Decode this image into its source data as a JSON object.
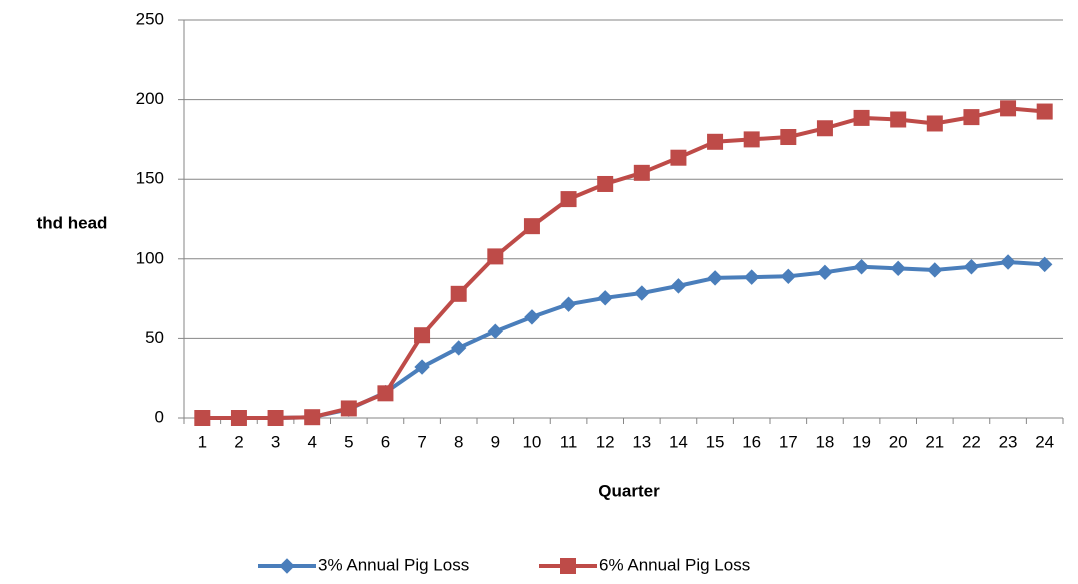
{
  "chart_data": {
    "type": "line",
    "title": "",
    "xlabel": "Quarter",
    "ylabel": "thd head",
    "categories": [
      "1",
      "2",
      "3",
      "4",
      "5",
      "6",
      "7",
      "8",
      "9",
      "10",
      "11",
      "12",
      "13",
      "14",
      "15",
      "16",
      "17",
      "18",
      "19",
      "20",
      "21",
      "22",
      "23",
      "24"
    ],
    "ylim": [
      0,
      250
    ],
    "yticks": [
      0,
      50,
      100,
      150,
      200,
      250
    ],
    "grid": true,
    "legend_position": "bottom",
    "series": [
      {
        "name": "3% Annual Pig Loss",
        "color": "#4a7ebb",
        "marker": "diamond",
        "values": [
          0,
          0,
          0,
          0.5,
          5.5,
          16,
          32,
          44,
          54.5,
          63.5,
          71.5,
          75.5,
          78.5,
          83,
          88,
          88.5,
          89,
          91.5,
          95,
          94,
          93,
          95,
          98,
          96.5
        ]
      },
      {
        "name": "6% Annual Pig Loss",
        "color": "#be4b48",
        "marker": "square",
        "values": [
          0,
          0,
          0,
          0.5,
          6,
          15.5,
          52,
          78,
          101.5,
          120.5,
          137.5,
          147,
          154,
          163.5,
          173.5,
          175,
          176.5,
          182,
          188.5,
          187.5,
          185,
          189,
          194.5,
          192.5
        ]
      }
    ]
  }
}
